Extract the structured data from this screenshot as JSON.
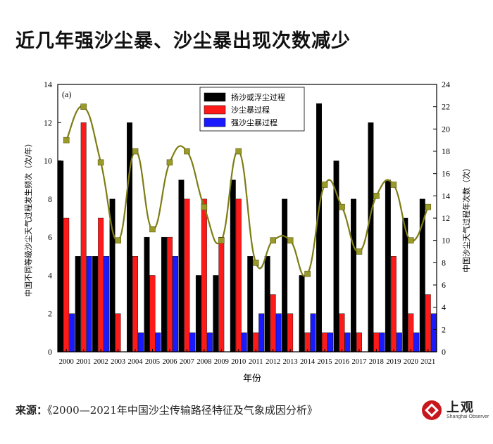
{
  "headline": "近几年强沙尘暴、沙尘暴出现次数减少",
  "source": {
    "label": "来源：",
    "text": "《2000—2021年中国沙尘传输路径特征及气象成因分析》"
  },
  "logo": {
    "name": "上观",
    "english": "Shanghai Observer",
    "color": "#c8161d"
  },
  "chart_data": {
    "type": "bar",
    "panel_label": "(a)",
    "xlabel": "年份",
    "ylabel_left": "中国不同等级沙尘天气过程发生频次（次/年）",
    "ylabel_right": "中国沙尘天气过程年次数（次）",
    "ylim_left": [
      0,
      14
    ],
    "yticks_left": [
      0,
      2,
      4,
      6,
      8,
      10,
      12,
      14
    ],
    "ylim_right": [
      0,
      24
    ],
    "yticks_right": [
      0,
      2,
      4,
      6,
      8,
      10,
      12,
      14,
      16,
      18,
      20,
      22,
      24
    ],
    "categories": [
      "2000",
      "2001",
      "2002",
      "2003",
      "2004",
      "2005",
      "2006",
      "2007",
      "2008",
      "2009",
      "2010",
      "2011",
      "2012",
      "2013",
      "2014",
      "2015",
      "2016",
      "2017",
      "2018",
      "2019",
      "2020",
      "2021"
    ],
    "series": [
      {
        "name": "扬沙或浮尘过程",
        "color": "#000000",
        "values": [
          10,
          5,
          5,
          8,
          12,
          6,
          6,
          9,
          4,
          4,
          9,
          5,
          5,
          8,
          4,
          13,
          10,
          8,
          12,
          9,
          7,
          8
        ]
      },
      {
        "name": "沙尘暴过程",
        "color": "#ff1a1a",
        "values": [
          7,
          12,
          7,
          2,
          5,
          4,
          6,
          8,
          8,
          6,
          8,
          1,
          3,
          2,
          1,
          1,
          2,
          1,
          1,
          5,
          2,
          3
        ]
      },
      {
        "name": "强沙尘暴过程",
        "color": "#1a1aff",
        "values": [
          2,
          5,
          5,
          0,
          1,
          1,
          5,
          1,
          1,
          0,
          1,
          2,
          2,
          0,
          2,
          1,
          1,
          0,
          1,
          1,
          1,
          2
        ]
      }
    ],
    "line": {
      "name": "沙尘天气过程年次数",
      "axis": "right",
      "color": "#7d7d14",
      "marker_color": "#9a9a2a",
      "values": [
        19,
        22,
        17,
        10,
        18,
        11,
        17,
        18,
        13,
        10,
        18,
        8,
        10,
        10,
        7,
        15,
        13,
        9,
        14,
        15,
        10,
        13
      ]
    }
  }
}
